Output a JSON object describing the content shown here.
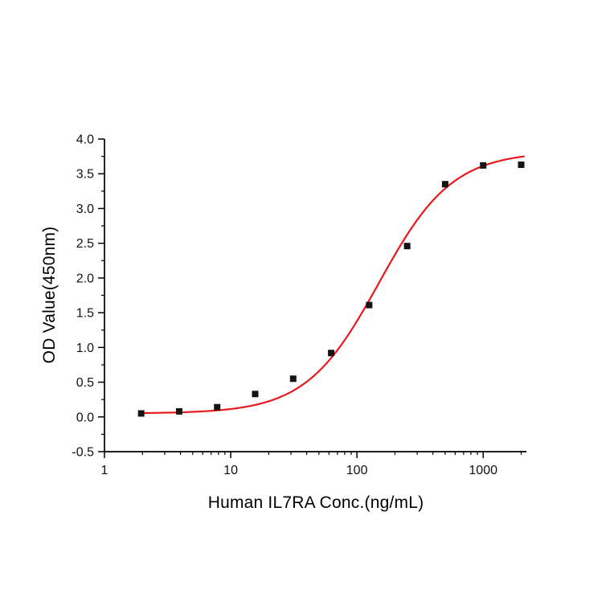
{
  "chart_data": {
    "type": "scatter",
    "title": "",
    "xlabel": "Human IL7RA Conc.(ng/mL)",
    "ylabel": "OD Value(450nm)",
    "x_scale": "log",
    "xlim": [
      1,
      2200
    ],
    "ylim": [
      -0.5,
      4.0
    ],
    "y_tick_step": 0.5,
    "y_minor_step": 0.25,
    "x_major_ticks": [
      1,
      10,
      100,
      1000
    ],
    "x_major_tick_labels": [
      "1",
      "10",
      "100",
      "1000"
    ],
    "x": [
      1.953,
      3.906,
      7.813,
      15.625,
      31.25,
      62.5,
      125,
      250,
      500,
      1000,
      2000
    ],
    "y": [
      0.05,
      0.08,
      0.14,
      0.33,
      0.55,
      0.92,
      1.61,
      2.46,
      3.35,
      3.62,
      3.63
    ],
    "marker": {
      "shape": "square",
      "color": "#141414",
      "size": 8
    },
    "fit_curve": {
      "type": "4PL",
      "color": "#e8191c",
      "bottom": 0.05,
      "top": 3.82,
      "ec50": 150,
      "hill": 1.5,
      "x_start": 1.9,
      "x_end": 2100
    },
    "axis_color": "#000000",
    "tick_label_color": "#111111",
    "grid": false,
    "legend": "none"
  }
}
